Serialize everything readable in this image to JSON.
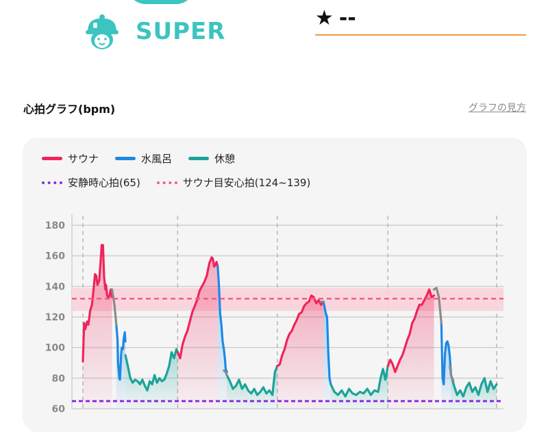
{
  "brand": {
    "name": "SUPER"
  },
  "rating": {
    "star": "★",
    "value": "--"
  },
  "heart_rate_section": {
    "title": "心拍グラフ(bpm)",
    "guide_link": "グラフの見方"
  },
  "legend": {
    "sauna": "サウナ",
    "cold_bath": "水風呂",
    "rest": "休憩",
    "resting_hr": "安静時心拍(65)",
    "target_hr": "サウナ目安心拍(124~139)"
  },
  "colors": {
    "sauna": "#f0245a",
    "cold_bath": "#1e88e5",
    "rest": "#1aa39a",
    "transition": "#8a8a8a",
    "resting_line": "#8a2be2",
    "target_line": "#f25c84",
    "target_band": "#f9d3dc",
    "accent": "#3cc4c0",
    "underline": "#f29a3a"
  },
  "chart_data": {
    "type": "line",
    "ylim": [
      60,
      180
    ],
    "yticks": [
      "180",
      "160",
      "140",
      "120",
      "100",
      "80",
      "60"
    ],
    "resting_hr": 65,
    "target_line": 132,
    "target_band": [
      124,
      139
    ],
    "series": [
      {
        "name": "サウナ",
        "kind": "sauna",
        "x": [
          0,
          2,
          4,
          7,
          9,
          12,
          15,
          18,
          20,
          22,
          24,
          27,
          29,
          31,
          33,
          35,
          37,
          38,
          40,
          42,
          44,
          46,
          48
        ],
        "y": [
          91,
          116,
          112,
          117,
          115,
          124,
          128,
          140,
          148,
          147,
          141,
          144,
          155,
          167,
          167,
          146,
          138,
          141,
          134,
          132,
          134,
          138,
          133
        ]
      },
      {
        "name": "水風呂",
        "kind": "cold_bath",
        "x": [
          55,
          57,
          58,
          60,
          61,
          63,
          64,
          66,
          67,
          69,
          70
        ],
        "y": [
          115,
          105,
          90,
          80,
          79,
          96,
          100,
          99,
          105,
          110,
          104
        ]
      },
      {
        "name": "休憩",
        "kind": "rest",
        "x": [
          70,
          74,
          78,
          82,
          86,
          90,
          94,
          98,
          102,
          106,
          110,
          114,
          118,
          122,
          126,
          130,
          134,
          138,
          142,
          146,
          150,
          154,
          156
        ],
        "y": [
          95,
          88,
          80,
          77,
          79,
          78,
          76,
          79,
          75,
          72,
          78,
          76,
          82,
          77,
          80,
          78,
          79,
          83,
          88,
          97,
          93,
          99,
          97
        ]
      },
      {
        "name": "サウナ",
        "kind": "sauna",
        "x": [
          156,
          160,
          164,
          168,
          172,
          176,
          180,
          184,
          188,
          192,
          196,
          200,
          204,
          208,
          212,
          214,
          216,
          218,
          220,
          222
        ],
        "y": [
          97,
          93,
          102,
          107,
          111,
          117,
          123,
          127,
          131,
          137,
          140,
          143,
          147,
          155,
          159,
          158,
          153,
          154,
          156,
          153
        ]
      },
      {
        "name": "水風呂",
        "kind": "cold_bath",
        "x": [
          222,
          224,
          226,
          228,
          230,
          232,
          234,
          235,
          237
        ],
        "y": [
          153,
          140,
          122,
          115,
          104,
          99,
          92,
          86,
          84
        ]
      },
      {
        "name": "休憩",
        "kind": "rest",
        "x": [
          237,
          242,
          247,
          252,
          257,
          262,
          267,
          272,
          277,
          282,
          287,
          292,
          297,
          302,
          307,
          312,
          316,
          320
        ],
        "y": [
          82,
          78,
          73,
          75,
          79,
          73,
          76,
          72,
          70,
          73,
          69,
          71,
          74,
          70,
          72,
          69,
          84,
          88
        ]
      },
      {
        "name": "サウナ",
        "kind": "sauna",
        "x": [
          320,
          324,
          328,
          332,
          336,
          340,
          344,
          348,
          352,
          356,
          360,
          364,
          368,
          372,
          376,
          380,
          384,
          388,
          392,
          396
        ],
        "y": [
          88,
          89,
          95,
          99,
          105,
          109,
          111,
          115,
          118,
          122,
          123,
          127,
          129,
          130,
          134,
          133,
          129,
          131,
          128,
          130
        ]
      },
      {
        "name": "水風呂",
        "kind": "cold_bath",
        "x": [
          396,
          398,
          400,
          402,
          404,
          406,
          408
        ],
        "y": [
          130,
          126,
          122,
          120,
          96,
          80,
          76
        ]
      },
      {
        "name": "休憩",
        "kind": "rest",
        "x": [
          408,
          414,
          420,
          426,
          432,
          438,
          444,
          450,
          456,
          462,
          468,
          474,
          480,
          486,
          490,
          494,
          498,
          502
        ],
        "y": [
          76,
          71,
          69,
          72,
          68,
          73,
          70,
          69,
          71,
          70,
          73,
          69,
          72,
          71,
          80,
          86,
          79,
          88
        ]
      },
      {
        "name": "サウナ",
        "kind": "sauna",
        "x": [
          502,
          506,
          510,
          514,
          518,
          522,
          526,
          530,
          534,
          538,
          542,
          546,
          550,
          554,
          558,
          562,
          566,
          570,
          574,
          578
        ],
        "y": [
          88,
          92,
          89,
          84,
          88,
          92,
          95,
          100,
          105,
          109,
          116,
          119,
          124,
          128,
          128,
          131,
          134,
          138,
          133,
          134
        ]
      },
      {
        "name": "水風呂",
        "kind": "cold_bath",
        "x": [
          590,
          592,
          594,
          596,
          598,
          600,
          602,
          604,
          606
        ],
        "y": [
          116,
          80,
          76,
          96,
          103,
          104,
          101,
          94,
          82
        ]
      },
      {
        "name": "休憩",
        "kind": "rest",
        "x": [
          606,
          611,
          616,
          621,
          626,
          631,
          636,
          641,
          646,
          651,
          656,
          661,
          666,
          671,
          676,
          681
        ],
        "y": [
          82,
          75,
          69,
          72,
          68,
          74,
          77,
          71,
          74,
          69,
          76,
          80,
          71,
          78,
          73,
          76
        ]
      }
    ],
    "transitions": [
      {
        "x": [
          48,
          52,
          55
        ],
        "y": [
          138,
          128,
          115
        ]
      },
      {
        "x": [
          232,
          235,
          237
        ],
        "y": [
          85,
          84,
          82
        ]
      },
      {
        "x": [
          392,
          396
        ],
        "y": [
          130,
          130
        ]
      },
      {
        "x": [
          578,
          582,
          586,
          590
        ],
        "y": [
          138,
          139,
          133,
          116
        ]
      },
      {
        "x": [
          604,
          606,
          610
        ],
        "y": [
          88,
          82,
          78
        ]
      }
    ],
    "section_dividers": [
      0,
      156,
      320,
      502,
      681
    ]
  }
}
